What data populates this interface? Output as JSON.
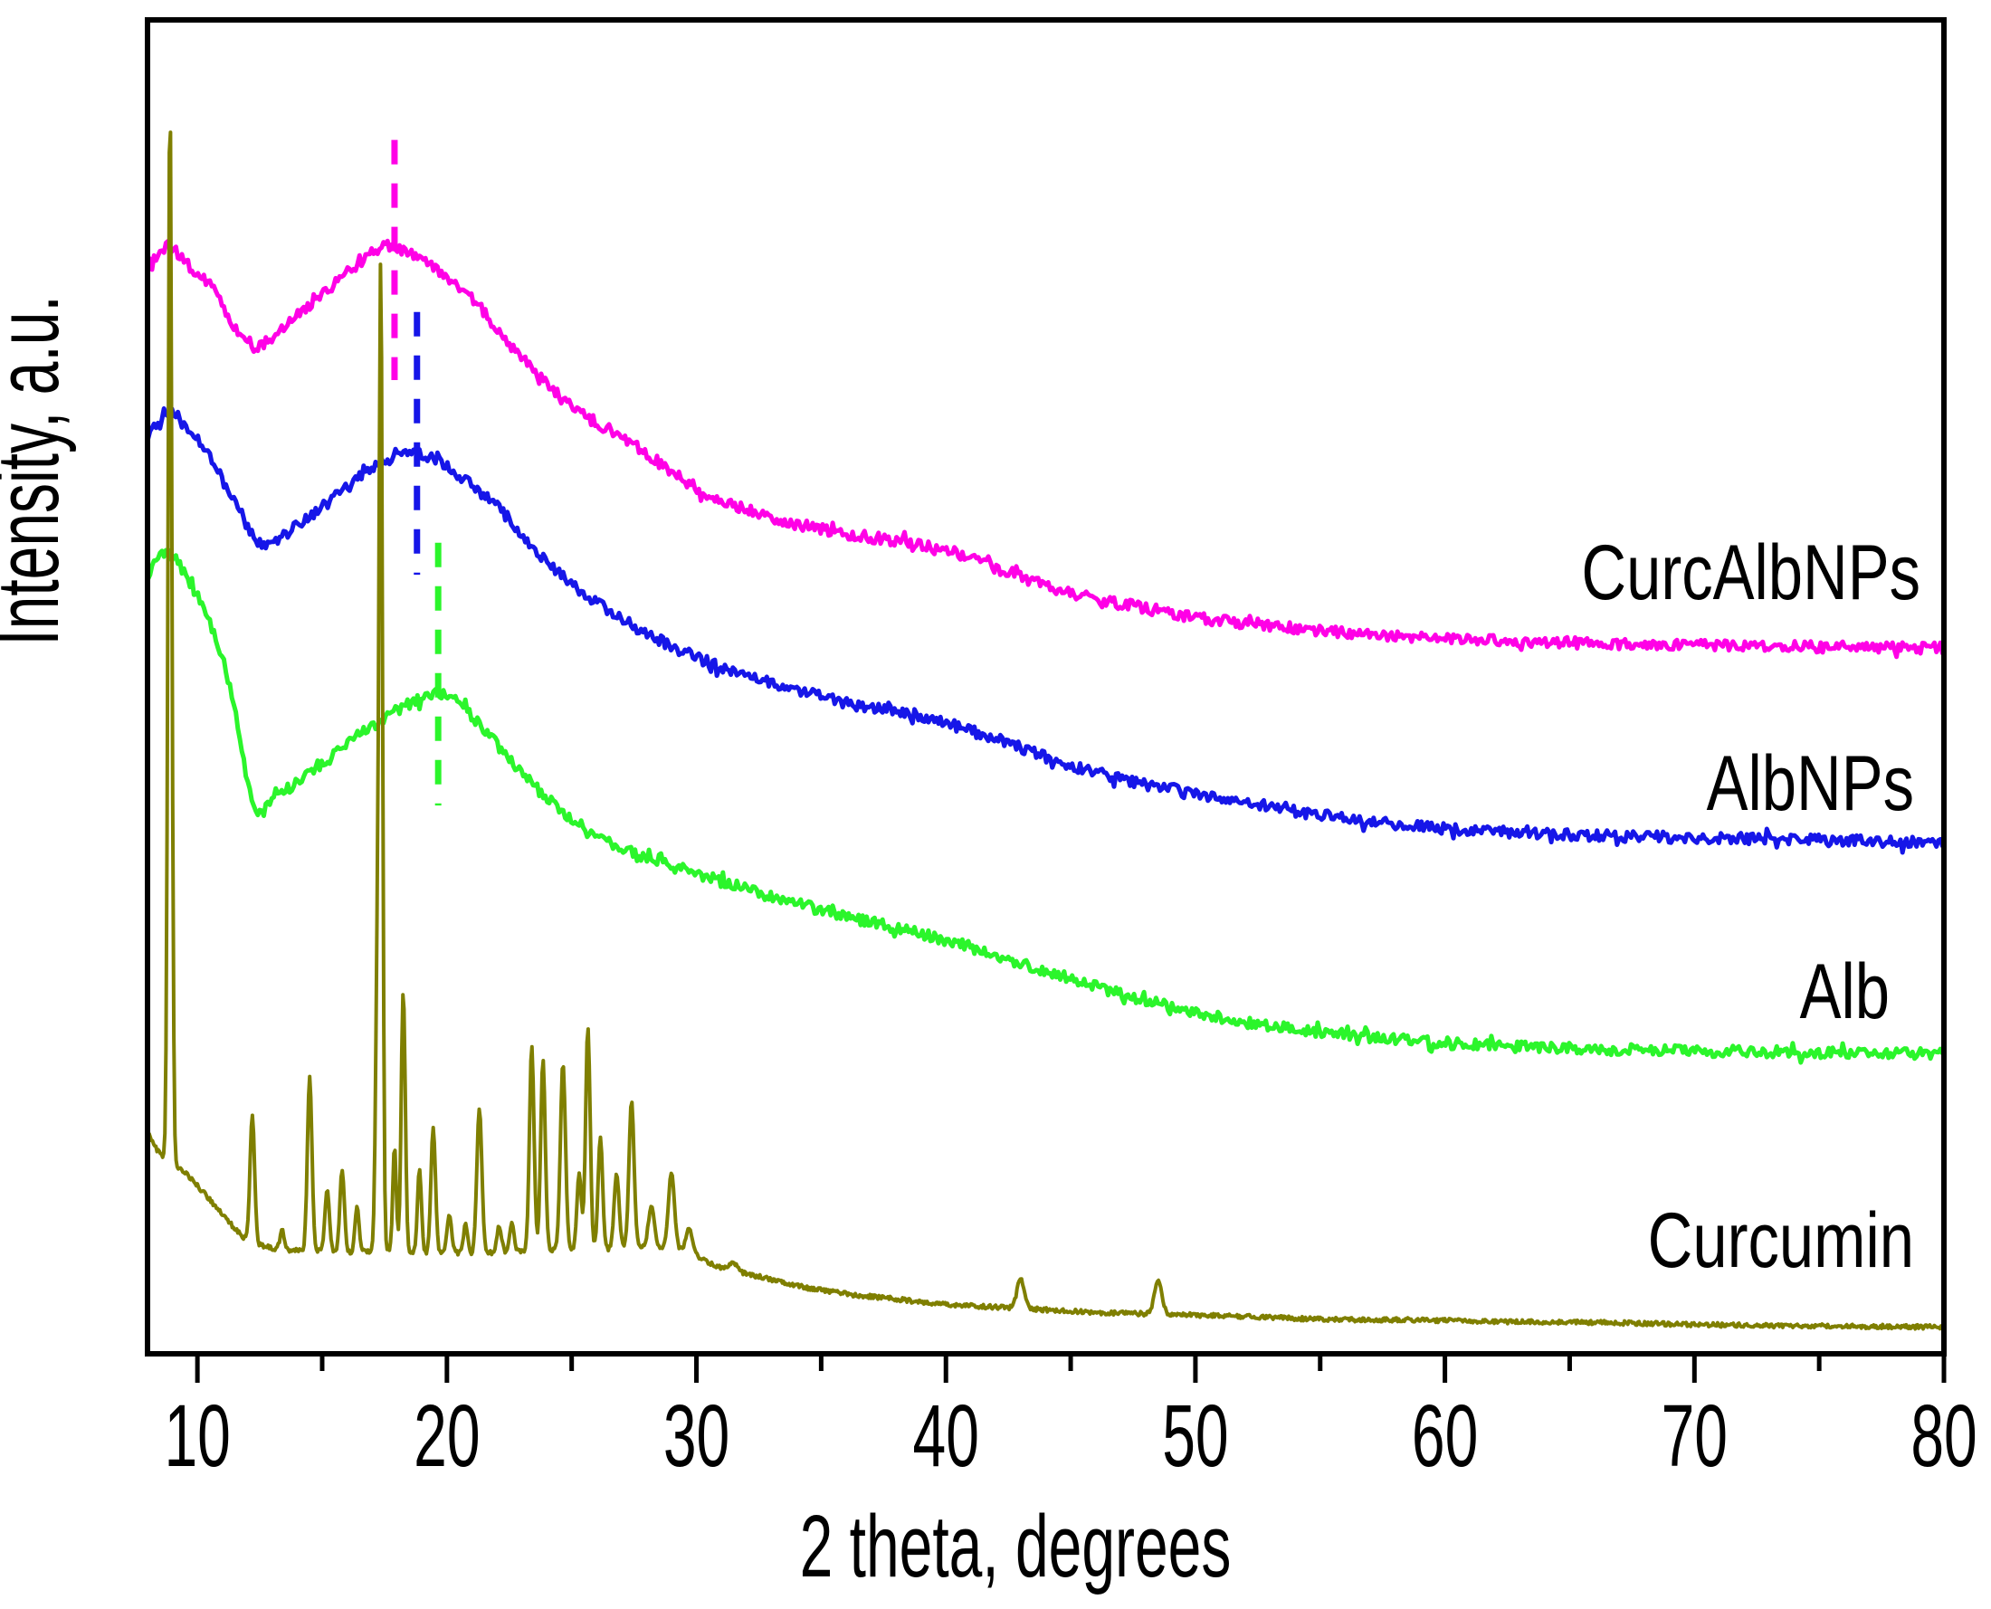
{
  "figure": {
    "background": "#ffffff",
    "frame_color": "#000000"
  },
  "chart_data": {
    "type": "line",
    "title": "",
    "xlabel": "2 theta, degrees",
    "ylabel": "Intensity, a.u.",
    "xlim": [
      8,
      80
    ],
    "ylim": [
      0,
      100
    ],
    "x_major_ticks": [
      10,
      20,
      30,
      40,
      50,
      60,
      70,
      80
    ],
    "x_minor_ticks": [
      15,
      25,
      35,
      45,
      55,
      65,
      75
    ],
    "y_ticks": [],
    "grid": false,
    "legend_position": "labels-right-inline",
    "series": [
      {
        "name": "CurcAlbNPs",
        "color": "#ff00e6",
        "style": "amorphous-halo",
        "anchors": [
          [
            8,
            81.5
          ],
          [
            8.8,
            83.0
          ],
          [
            9.5,
            81.8
          ],
          [
            10.5,
            80.1
          ],
          [
            11.2,
            77.8
          ],
          [
            12,
            75.6
          ],
          [
            12.8,
            75.9
          ],
          [
            13.5,
            77.1
          ],
          [
            15,
            79.4
          ],
          [
            16.5,
            81.8
          ],
          [
            17.6,
            83.0
          ],
          [
            18.5,
            82.5
          ],
          [
            19.5,
            81.5
          ],
          [
            21,
            79.1
          ],
          [
            23,
            74.7
          ],
          [
            25,
            71.0
          ],
          [
            27.5,
            68.2
          ],
          [
            30,
            64.9
          ],
          [
            33,
            62.7
          ],
          [
            36,
            61.5
          ],
          [
            38.5,
            60.8
          ],
          [
            41,
            59.6
          ],
          [
            43.5,
            57.9
          ],
          [
            46,
            56.6
          ],
          [
            48,
            55.9
          ],
          [
            50,
            55.2
          ],
          [
            52.5,
            54.7
          ],
          [
            55,
            54.2
          ],
          [
            60,
            53.6
          ],
          [
            65,
            53.3
          ],
          [
            70,
            53.1
          ],
          [
            75,
            53.0
          ],
          [
            80,
            52.9
          ]
        ]
      },
      {
        "name": "AlbNPs",
        "color": "#1616e8",
        "style": "amorphous-halo",
        "anchors": [
          [
            8,
            68.9
          ],
          [
            8.8,
            70.6
          ],
          [
            9.5,
            69.5
          ],
          [
            10.5,
            67.2
          ],
          [
            11.5,
            63.8
          ],
          [
            12.6,
            60.7
          ],
          [
            14,
            62.1
          ],
          [
            15.5,
            64.2
          ],
          [
            17,
            66.3
          ],
          [
            18.6,
            67.6
          ],
          [
            20,
            66.5
          ],
          [
            22,
            63.5
          ],
          [
            24,
            59.4
          ],
          [
            26,
            56.3
          ],
          [
            28,
            54.0
          ],
          [
            30,
            52.2
          ],
          [
            33,
            50.3
          ],
          [
            36,
            48.8
          ],
          [
            39,
            47.8
          ],
          [
            42,
            46.1
          ],
          [
            45,
            44.1
          ],
          [
            48,
            42.7
          ],
          [
            51,
            41.7
          ],
          [
            55,
            40.4
          ],
          [
            60,
            39.4
          ],
          [
            65,
            38.9
          ],
          [
            70,
            38.7
          ],
          [
            75,
            38.5
          ],
          [
            80,
            38.3
          ]
        ]
      },
      {
        "name": "Alb",
        "color": "#2bf52b",
        "style": "amorphous-halo",
        "anchors": [
          [
            8,
            58.4
          ],
          [
            8.8,
            60.0
          ],
          [
            9.6,
            58.1
          ],
          [
            10.5,
            54.7
          ],
          [
            11.3,
            50.0
          ],
          [
            12.3,
            40.9
          ],
          [
            13,
            41.5
          ],
          [
            13.8,
            42.6
          ],
          [
            15,
            44.2
          ],
          [
            16.5,
            46.4
          ],
          [
            18,
            48.2
          ],
          [
            19.5,
            49.4
          ],
          [
            20.5,
            48.7
          ],
          [
            22,
            45.7
          ],
          [
            23.5,
            42.6
          ],
          [
            25,
            40.1
          ],
          [
            27,
            37.9
          ],
          [
            30,
            36.0
          ],
          [
            33,
            34.3
          ],
          [
            36,
            32.8
          ],
          [
            39,
            31.5
          ],
          [
            42,
            29.9
          ],
          [
            45,
            28.1
          ],
          [
            48,
            26.5
          ],
          [
            51,
            25.2
          ],
          [
            55,
            24.1
          ],
          [
            60,
            23.3
          ],
          [
            65,
            22.9
          ],
          [
            70,
            22.7
          ],
          [
            75,
            22.6
          ],
          [
            80,
            22.5
          ]
        ]
      },
      {
        "name": "Curcumin",
        "color": "#7f7f00",
        "style": "crystalline",
        "anchors": [
          [
            8,
            16.6
          ],
          [
            8.5,
            15.0
          ],
          [
            9.3,
            13.9
          ],
          [
            10,
            12.6
          ],
          [
            10.8,
            10.9
          ],
          [
            11.5,
            9.4
          ],
          [
            12,
            8.5
          ],
          [
            12.6,
            8.1
          ],
          [
            13.5,
            7.8
          ],
          [
            15,
            7.7
          ],
          [
            16,
            7.6
          ],
          [
            17,
            7.7
          ],
          [
            18,
            7.7
          ],
          [
            19,
            7.5
          ],
          [
            20,
            7.6
          ],
          [
            21,
            7.5
          ],
          [
            22,
            7.6
          ],
          [
            23,
            7.7
          ],
          [
            24,
            7.8
          ],
          [
            25,
            7.8
          ],
          [
            26,
            7.8
          ],
          [
            27,
            7.9
          ],
          [
            28,
            8.0
          ],
          [
            29,
            7.8
          ],
          [
            29.8,
            7.6
          ],
          [
            30.5,
            6.8
          ],
          [
            31.5,
            6.2
          ],
          [
            32.5,
            5.8
          ],
          [
            34,
            5.1
          ],
          [
            36,
            4.5
          ],
          [
            38,
            4.1
          ],
          [
            40,
            3.7
          ],
          [
            42,
            3.5
          ],
          [
            44,
            3.3
          ],
          [
            46,
            3.1
          ],
          [
            48,
            3.0
          ],
          [
            50,
            2.9
          ],
          [
            52,
            2.8
          ],
          [
            55,
            2.6
          ],
          [
            58,
            2.55
          ],
          [
            60,
            2.5
          ],
          [
            63,
            2.4
          ],
          [
            66,
            2.35
          ],
          [
            70,
            2.2
          ],
          [
            74,
            2.1
          ],
          [
            77,
            2.05
          ],
          [
            80,
            2.0
          ]
        ],
        "peaks": [
          [
            8.9,
            94.4,
            0.075
          ],
          [
            12.2,
            17.9,
            0.09
          ],
          [
            13.4,
            9.2,
            0.09
          ],
          [
            14.5,
            20.8,
            0.09
          ],
          [
            15.2,
            12.3,
            0.09
          ],
          [
            15.8,
            13.8,
            0.09
          ],
          [
            16.4,
            11.1,
            0.08
          ],
          [
            17.2,
            25.5,
            0.07
          ],
          [
            17.35,
            80.5,
            0.07
          ],
          [
            17.9,
            15.5,
            0.07
          ],
          [
            18.25,
            27.2,
            0.08
          ],
          [
            18.9,
            13.8,
            0.08
          ],
          [
            19.45,
            16.9,
            0.09
          ],
          [
            20.1,
            10.4,
            0.09
          ],
          [
            20.75,
            9.8,
            0.08
          ],
          [
            21.3,
            18.4,
            0.1
          ],
          [
            22.1,
            9.6,
            0.09
          ],
          [
            22.6,
            9.9,
            0.08
          ],
          [
            23.4,
            23.1,
            0.09
          ],
          [
            23.85,
            22.1,
            0.09
          ],
          [
            24.65,
            21.8,
            0.1
          ],
          [
            25.3,
            13.5,
            0.09
          ],
          [
            25.65,
            24.5,
            0.09
          ],
          [
            26.15,
            16.3,
            0.09
          ],
          [
            26.8,
            13.5,
            0.1
          ],
          [
            27.4,
            19.0,
            0.1
          ],
          [
            28.2,
            11.1,
            0.12
          ],
          [
            29.0,
            13.6,
            0.12
          ],
          [
            29.7,
            9.5,
            0.12
          ],
          [
            31.5,
            6.8,
            0.15
          ],
          [
            43.0,
            5.6,
            0.15
          ],
          [
            48.5,
            5.5,
            0.15
          ]
        ]
      }
    ],
    "peak_markers": [
      {
        "series": "CurcAlbNPs",
        "x": 17.9,
        "y_bottom": 73.0,
        "y_top": 91.0,
        "color": "#ff00e6"
      },
      {
        "series": "AlbNPs",
        "x": 18.8,
        "y_bottom": 58.4,
        "y_top": 78.1,
        "color": "#1616e8"
      },
      {
        "series": "Alb",
        "x": 19.65,
        "y_bottom": 41.1,
        "y_top": 60.8,
        "color": "#2bf52b"
      }
    ]
  }
}
